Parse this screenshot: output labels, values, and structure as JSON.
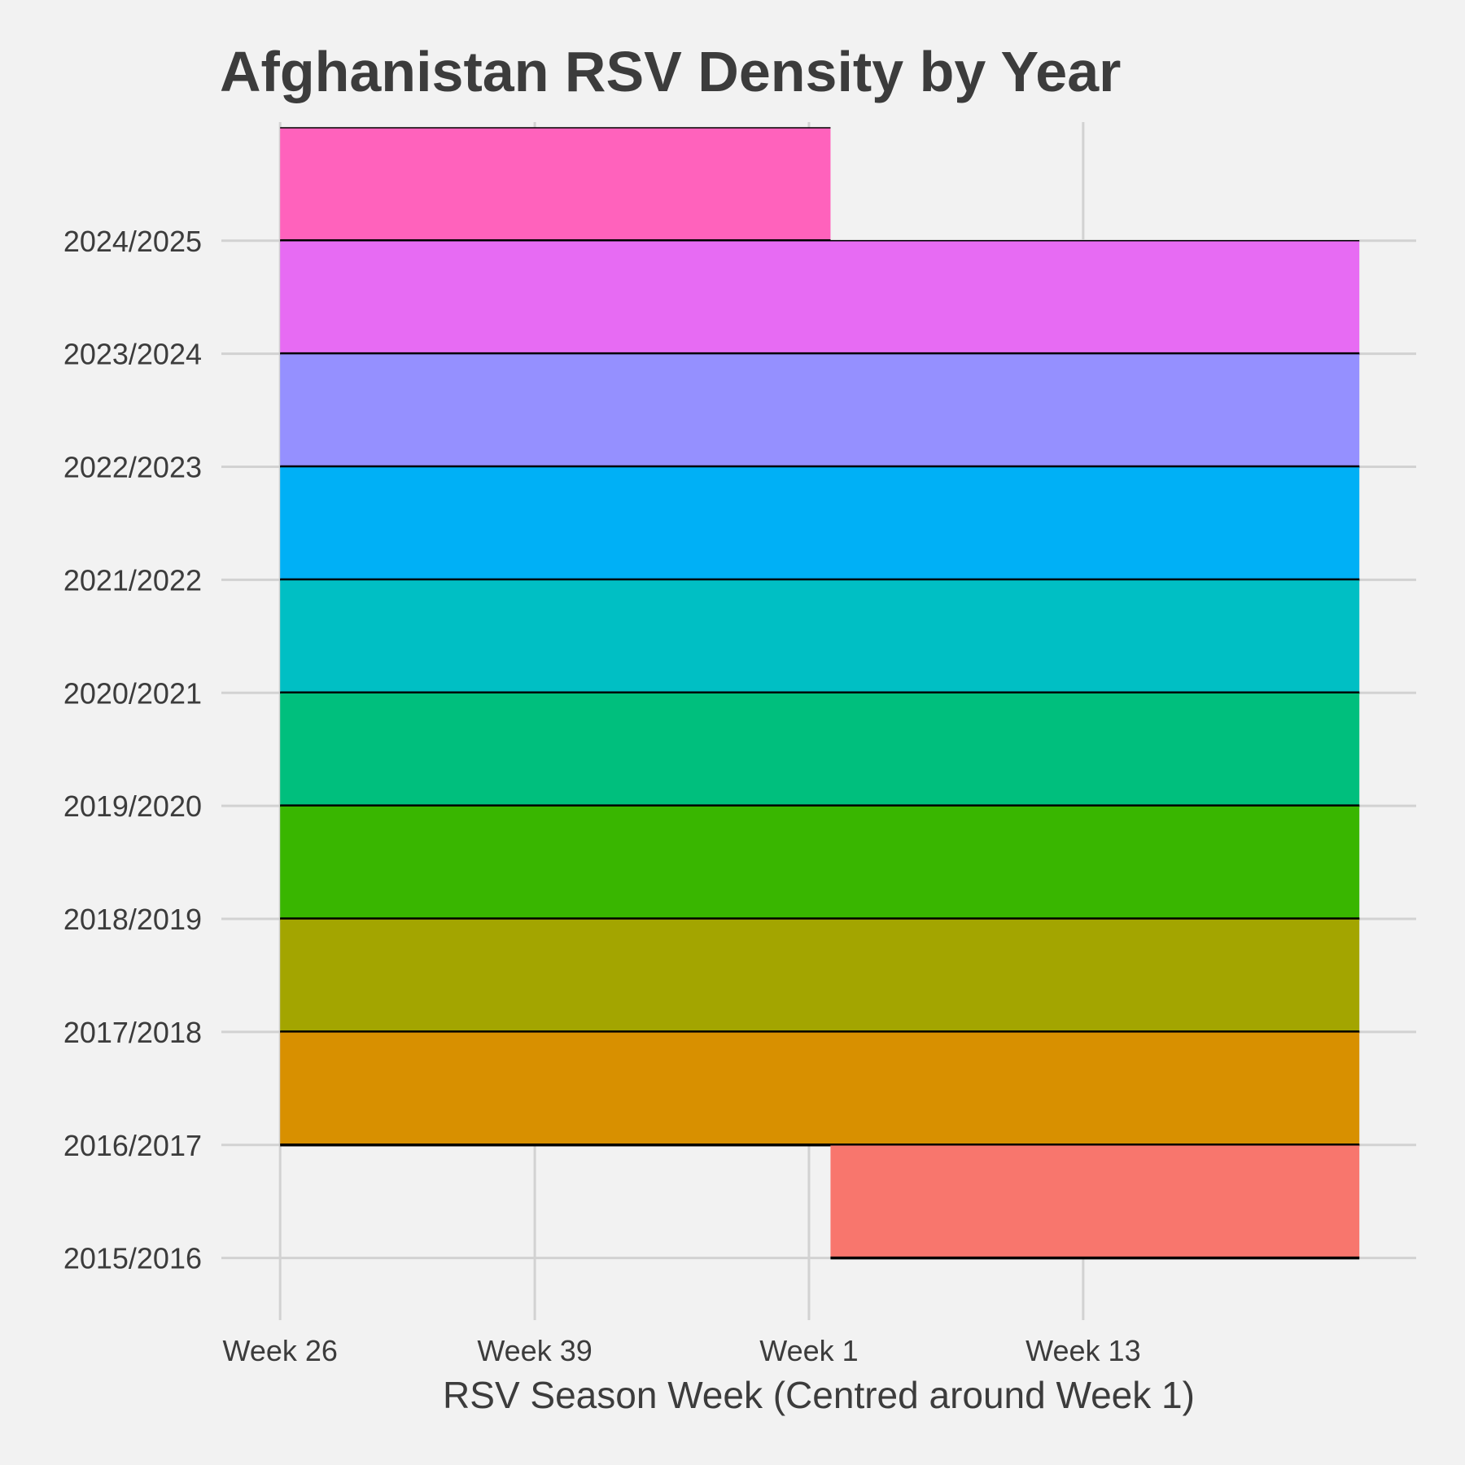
{
  "chart_data": {
    "type": "area",
    "title": "Afghanistan RSV Density by Year",
    "xlabel": "RSV Season Week (Centred around Week 1)",
    "ylabel": "",
    "x_ticks": [
      {
        "label": "Week 26",
        "pos": 0
      },
      {
        "label": "Week 39",
        "pos": 13
      },
      {
        "label": "Week 1",
        "pos": 27
      },
      {
        "label": "Week 13",
        "pos": 41
      }
    ],
    "xlim": [
      -3,
      58
    ],
    "ylim": [
      -0.55,
      10.05
    ],
    "grid": true,
    "legend": "none",
    "series": [
      {
        "name": "2015/2016",
        "baseline": 0,
        "x_start": 28.1,
        "x_end": 55.1,
        "density": 1.0,
        "color": "#F8766D"
      },
      {
        "name": "2016/2017",
        "baseline": 1,
        "x_start": 0,
        "x_end": 55.1,
        "density": 1.0,
        "color": "#D89000"
      },
      {
        "name": "2017/2018",
        "baseline": 2,
        "x_start": 0,
        "x_end": 55.1,
        "density": 1.0,
        "color": "#A3A500"
      },
      {
        "name": "2018/2019",
        "baseline": 3,
        "x_start": 0,
        "x_end": 55.1,
        "density": 1.0,
        "color": "#39B600"
      },
      {
        "name": "2019/2020",
        "baseline": 4,
        "x_start": 0,
        "x_end": 55.1,
        "density": 1.0,
        "color": "#00BF7D"
      },
      {
        "name": "2020/2021",
        "baseline": 5,
        "x_start": 0,
        "x_end": 55.1,
        "density": 1.0,
        "color": "#00BFC4"
      },
      {
        "name": "2021/2022",
        "baseline": 6,
        "x_start": 0,
        "x_end": 55.1,
        "density": 1.0,
        "color": "#00B0F6"
      },
      {
        "name": "2022/2023",
        "baseline": 7,
        "x_start": 0,
        "x_end": 55.1,
        "density": 1.0,
        "color": "#9590FF"
      },
      {
        "name": "2023/2024",
        "baseline": 8,
        "x_start": 0,
        "x_end": 55.1,
        "density": 1.0,
        "color": "#E76BF3"
      },
      {
        "name": "2024/2025",
        "baseline": 9,
        "x_start": 0,
        "x_end": 28.1,
        "density": 1.0,
        "color": "#FF62BC"
      }
    ],
    "colors": {
      "background": "#f2f2f2",
      "grid": "#d2d2d2",
      "text": "#3c3c3c",
      "outline": "#000000"
    }
  }
}
